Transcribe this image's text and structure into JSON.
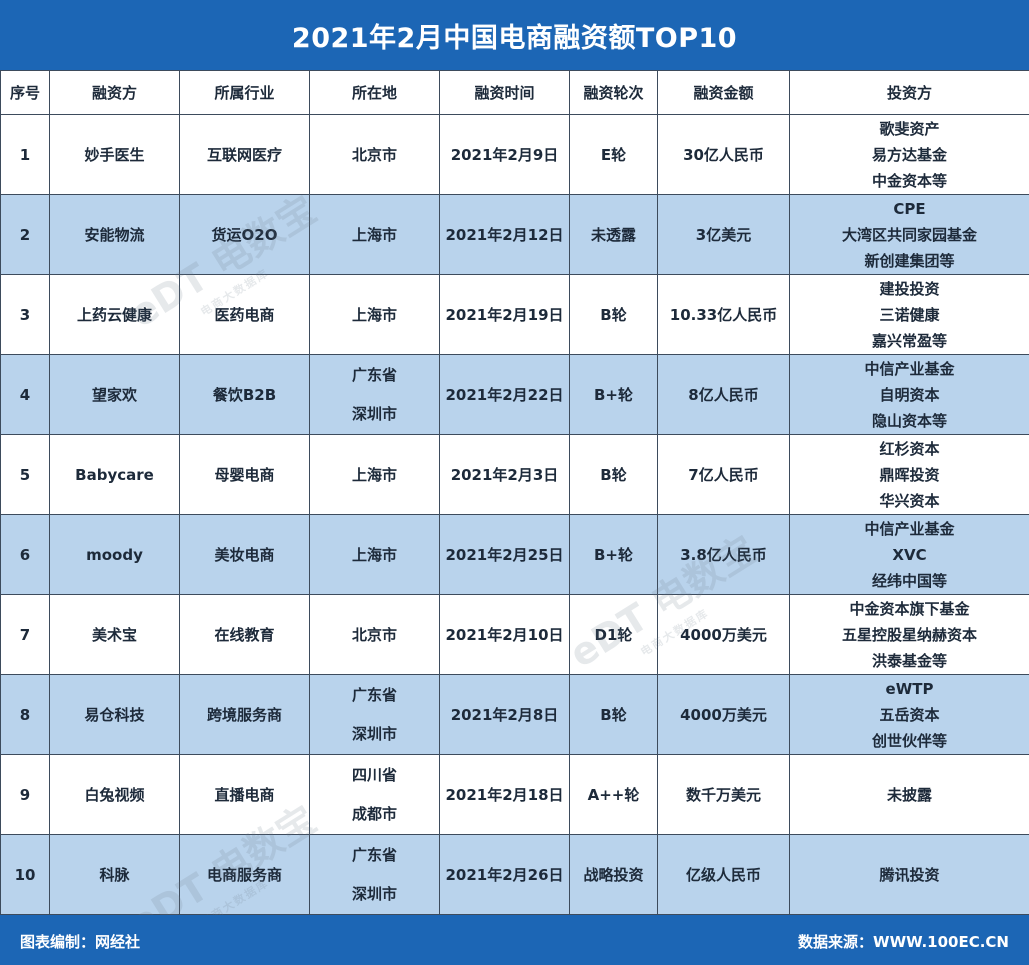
{
  "title": "2021年2月中国电商融资额TOP10",
  "columns": [
    "序号",
    "融资方",
    "所属行业",
    "所在地",
    "融资时间",
    "融资轮次",
    "融资金额",
    "投资方"
  ],
  "rows": [
    {
      "no": "1",
      "company": "妙手医生",
      "industry": "互联网医疗",
      "location": [
        "北京市"
      ],
      "date": "2021年2月9日",
      "round": "E轮",
      "amount": "30亿人民币",
      "investors": [
        "歌斐资产",
        "易方达基金",
        "中金资本等"
      ]
    },
    {
      "no": "2",
      "company": "安能物流",
      "industry": "货运O2O",
      "location": [
        "上海市"
      ],
      "date": "2021年2月12日",
      "round": "未透露",
      "amount": "3亿美元",
      "investors": [
        "CPE",
        "大湾区共同家园基金",
        "新创建集团等"
      ]
    },
    {
      "no": "3",
      "company": "上药云健康",
      "industry": "医药电商",
      "location": [
        "上海市"
      ],
      "date": "2021年2月19日",
      "round": "B轮",
      "amount": "10.33亿人民币",
      "investors": [
        "建投投资",
        "三诺健康",
        "嘉兴常盈等"
      ]
    },
    {
      "no": "4",
      "company": "望家欢",
      "industry": "餐饮B2B",
      "location": [
        "广东省",
        "深圳市"
      ],
      "date": "2021年2月22日",
      "round": "B+轮",
      "amount": "8亿人民币",
      "investors": [
        "中信产业基金",
        "自明资本",
        "隐山资本等"
      ]
    },
    {
      "no": "5",
      "company": "Babycare",
      "industry": "母婴电商",
      "location": [
        "上海市"
      ],
      "date": "2021年2月3日",
      "round": "B轮",
      "amount": "7亿人民币",
      "investors": [
        "红杉资本",
        "鼎晖投资",
        "华兴资本"
      ]
    },
    {
      "no": "6",
      "company": "moody",
      "industry": "美妆电商",
      "location": [
        "上海市"
      ],
      "date": "2021年2月25日",
      "round": "B+轮",
      "amount": "3.8亿人民币",
      "investors": [
        "中信产业基金",
        "XVC",
        "经纬中国等"
      ]
    },
    {
      "no": "7",
      "company": "美术宝",
      "industry": "在线教育",
      "location": [
        "北京市"
      ],
      "date": "2021年2月10日",
      "round": "D1轮",
      "amount": "4000万美元",
      "investors": [
        "中金资本旗下基金",
        "五星控股星纳赫资本",
        "洪泰基金等"
      ]
    },
    {
      "no": "8",
      "company": "易仓科技",
      "industry": "跨境服务商",
      "location": [
        "广东省",
        "深圳市"
      ],
      "date": "2021年2月8日",
      "round": "B轮",
      "amount": "4000万美元",
      "investors": [
        "eWTP",
        "五岳资本",
        "创世伙伴等"
      ]
    },
    {
      "no": "9",
      "company": "白兔视频",
      "industry": "直播电商",
      "location": [
        "四川省",
        "成都市"
      ],
      "date": "2021年2月18日",
      "round": "A++轮",
      "amount": "数千万美元",
      "investors": [
        "未披露"
      ]
    },
    {
      "no": "10",
      "company": "科脉",
      "industry": "电商服务商",
      "location": [
        "广东省",
        "深圳市"
      ],
      "date": "2021年2月26日",
      "round": "战略投资",
      "amount": "亿级人民币",
      "investors": [
        "腾讯投资"
      ]
    }
  ],
  "footer": {
    "left": "图表编制：网经社",
    "right": "数据来源：WWW.100EC.CN"
  },
  "watermark": {
    "main": "eDT 电数宝",
    "sub": "电商大数据库"
  },
  "colors": {
    "header_bg": "#1c66b5",
    "row_alt_bg": "#b9d3ec",
    "border": "#3d4b5c"
  }
}
